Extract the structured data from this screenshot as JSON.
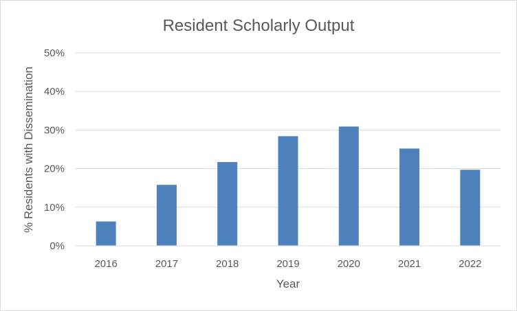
{
  "chart_data": {
    "type": "bar",
    "title": "Resident Scholarly Output",
    "xlabel": "Year",
    "ylabel": "% Residents with Dissemination",
    "categories": [
      "2016",
      "2017",
      "2018",
      "2019",
      "2020",
      "2021",
      "2022"
    ],
    "values": [
      6.3,
      15.8,
      21.7,
      28.4,
      30.9,
      25.2,
      19.7
    ],
    "ylim": [
      0,
      50
    ],
    "yticks": [
      "0%",
      "10%",
      "20%",
      "30%",
      "40%",
      "50%"
    ],
    "grid": true,
    "legend": "none",
    "bar_color": "#4f81bd"
  }
}
